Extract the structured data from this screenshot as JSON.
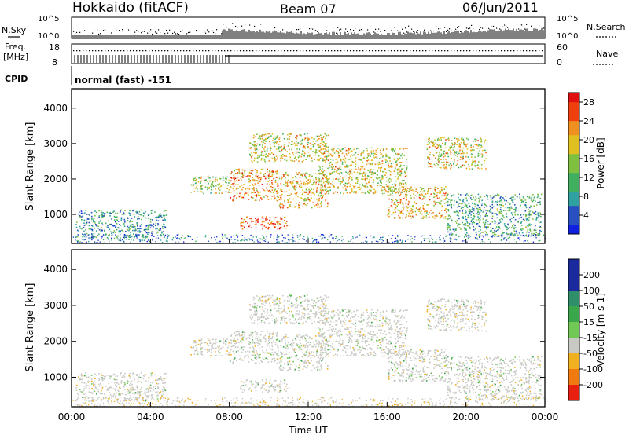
{
  "header": {
    "station": "Hokkaido (fitACF)",
    "beam": "Beam 07",
    "date": "06/Jun/2011"
  },
  "top_panels": {
    "nsky_label": "N.Sky",
    "nsky_ticks": [
      "10^5",
      "10^0"
    ],
    "nsearch_label": "N.Search",
    "nsearch_ticks": [
      "10^5",
      "10^0"
    ],
    "freq_label": "Freq.",
    "freq_unit": "[MHz]",
    "freq_ticks": [
      "18",
      "8"
    ],
    "nave_label": "Nave",
    "nave_ticks": [
      "60",
      "0"
    ],
    "cpid_label": "CPID",
    "cpid_value": "normal (fast) -151"
  },
  "chart_data": [
    {
      "type": "heatmap",
      "panel": "power",
      "ylabel": "Slant Range [km]",
      "ylim": [
        180,
        4550
      ],
      "yticks": [
        "1000",
        "2000",
        "3000",
        "4000"
      ],
      "xlim_hours": [
        0,
        24
      ],
      "colorbar": {
        "label": "Power [dB]",
        "ticks": [
          "4",
          "8",
          "12",
          "16",
          "20",
          "24",
          "28"
        ],
        "range": [
          0,
          30
        ]
      },
      "scatter_regions": [
        {
          "t0": 0.2,
          "t1": 4.8,
          "r0": 350,
          "r1": 1150,
          "level": 8
        },
        {
          "t0": 6.0,
          "t1": 8.0,
          "r0": 1600,
          "r1": 2100,
          "level": 16
        },
        {
          "t0": 8.0,
          "t1": 10.5,
          "r0": 1400,
          "r1": 2300,
          "level": 22
        },
        {
          "t0": 9.0,
          "t1": 13.0,
          "r0": 2500,
          "r1": 3300,
          "level": 18
        },
        {
          "t0": 10.5,
          "t1": 13.0,
          "r0": 1200,
          "r1": 2200,
          "level": 20
        },
        {
          "t0": 12.5,
          "t1": 17.0,
          "r0": 1600,
          "r1": 2900,
          "level": 18
        },
        {
          "t0": 16.0,
          "t1": 19.0,
          "r0": 900,
          "r1": 1800,
          "level": 20
        },
        {
          "t0": 18.0,
          "t1": 21.0,
          "r0": 2300,
          "r1": 3200,
          "level": 18
        },
        {
          "t0": 19.0,
          "t1": 23.8,
          "r0": 400,
          "r1": 1600,
          "level": 10
        },
        {
          "t0": 8.5,
          "t1": 11.0,
          "r0": 600,
          "r1": 950,
          "level": 26
        }
      ]
    },
    {
      "type": "heatmap",
      "panel": "velocity",
      "ylabel": "Slant Range [km]",
      "ylim": [
        180,
        4550
      ],
      "yticks": [
        "1000",
        "2000",
        "3000",
        "4000"
      ],
      "xlim_hours": [
        0,
        24
      ],
      "xlabel": "Time UT",
      "xticks": [
        "00:00",
        "04:00",
        "08:00",
        "12:00",
        "16:00",
        "20:00",
        "00:00"
      ],
      "colorbar": {
        "label": "Velocity [m s-1]",
        "ticks": [
          "200",
          "100",
          "50",
          "15",
          "-15",
          "-50",
          "-100",
          "-200"
        ]
      },
      "dominant_velocity": "-15 to 15 (ground/low velocity scatter)"
    }
  ],
  "colors": {
    "power_scale": [
      "#1020e0",
      "#2850c0",
      "#30a0a0",
      "#40b060",
      "#80c040",
      "#e0c020",
      "#f09020",
      "#f04010",
      "#e01010"
    ],
    "velocity_scale": [
      "#1a2a9c",
      "#2f8f6b",
      "#3aa84a",
      "#72c854",
      "#c8c8c4",
      "#f0b020",
      "#f07a10",
      "#e82010"
    ]
  }
}
